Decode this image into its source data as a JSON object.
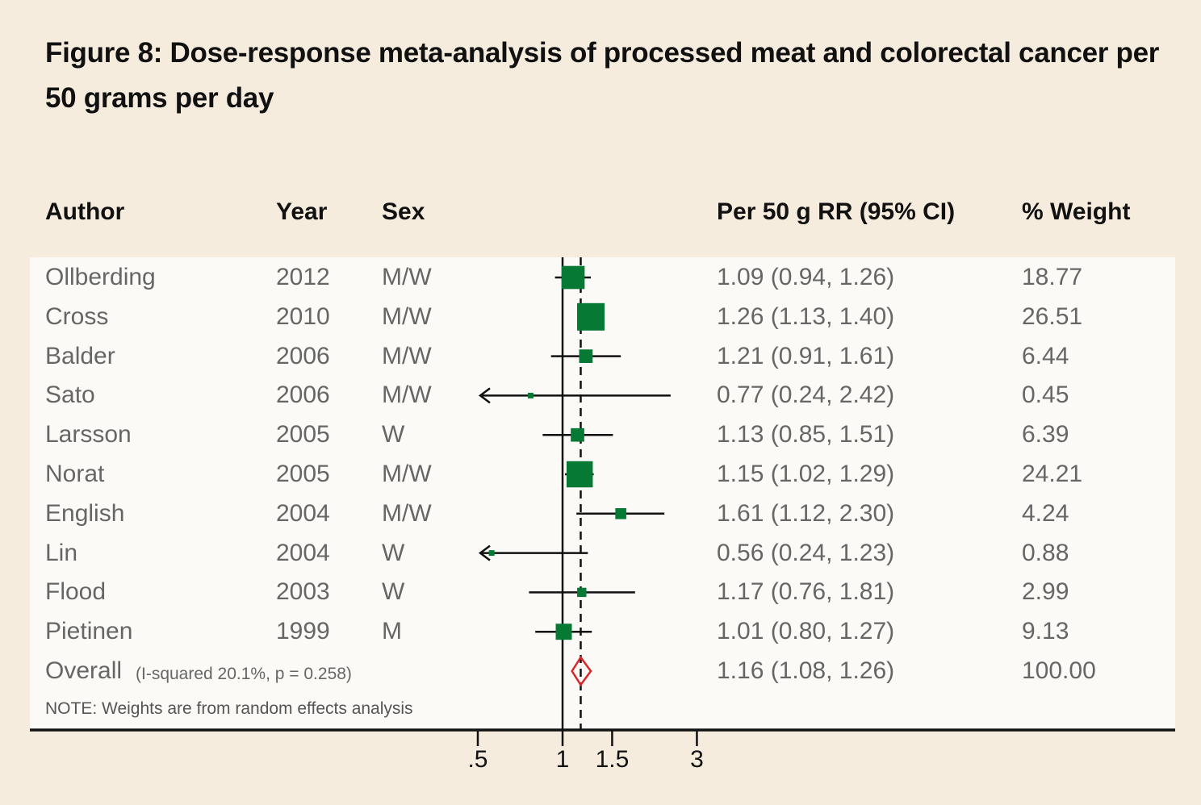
{
  "chart_data": {
    "type": "forest",
    "title": "Figure 8: Dose-response meta-analysis of processed meat and colorectal cancer per 50 grams per day",
    "columns": {
      "author": "Author",
      "year": "Year",
      "sex": "Sex",
      "rr": "Per 50 g RR (95% CI)",
      "weight": "% Weight"
    },
    "rows": [
      {
        "author": "Ollberding",
        "year": "2012",
        "sex": "M/W",
        "rr": 1.09,
        "lo": 0.94,
        "hi": 1.26,
        "rr_text": "1.09 (0.94, 1.26)",
        "weight": 18.77,
        "weight_text": "18.77"
      },
      {
        "author": "Cross",
        "year": "2010",
        "sex": "M/W",
        "rr": 1.26,
        "lo": 1.13,
        "hi": 1.4,
        "rr_text": "1.26 (1.13, 1.40)",
        "weight": 26.51,
        "weight_text": "26.51"
      },
      {
        "author": "Balder",
        "year": "2006",
        "sex": "M/W",
        "rr": 1.21,
        "lo": 0.91,
        "hi": 1.61,
        "rr_text": "1.21 (0.91, 1.61)",
        "weight": 6.44,
        "weight_text": "6.44"
      },
      {
        "author": "Sato",
        "year": "2006",
        "sex": "M/W",
        "rr": 0.77,
        "lo": 0.24,
        "hi": 2.42,
        "rr_text": "0.77 (0.24, 2.42)",
        "weight": 0.45,
        "weight_text": "0.45"
      },
      {
        "author": "Larsson",
        "year": "2005",
        "sex": "W",
        "rr": 1.13,
        "lo": 0.85,
        "hi": 1.51,
        "rr_text": "1.13 (0.85, 1.51)",
        "weight": 6.39,
        "weight_text": "6.39"
      },
      {
        "author": "Norat",
        "year": "2005",
        "sex": "M/W",
        "rr": 1.15,
        "lo": 1.02,
        "hi": 1.29,
        "rr_text": "1.15 (1.02, 1.29)",
        "weight": 24.21,
        "weight_text": "24.21"
      },
      {
        "author": "English",
        "year": "2004",
        "sex": "M/W",
        "rr": 1.61,
        "lo": 1.12,
        "hi": 2.3,
        "rr_text": "1.61 (1.12, 2.30)",
        "weight": 4.24,
        "weight_text": "4.24"
      },
      {
        "author": "Lin",
        "year": "2004",
        "sex": "W",
        "rr": 0.56,
        "lo": 0.24,
        "hi": 1.23,
        "rr_text": "0.56 (0.24, 1.23)",
        "weight": 0.88,
        "weight_text": "0.88"
      },
      {
        "author": "Flood",
        "year": "2003",
        "sex": "W",
        "rr": 1.17,
        "lo": 0.76,
        "hi": 1.81,
        "rr_text": "1.17 (0.76, 1.81)",
        "weight": 2.99,
        "weight_text": "2.99"
      },
      {
        "author": "Pietinen",
        "year": "1999",
        "sex": "M",
        "rr": 1.01,
        "lo": 0.8,
        "hi": 1.27,
        "rr_text": "1.01 (0.80, 1.27)",
        "weight": 9.13,
        "weight_text": "9.13"
      }
    ],
    "overall": {
      "label": "Overall",
      "stats": "(I-squared 20.1%, p = 0.258)",
      "rr": 1.16,
      "lo": 1.08,
      "hi": 1.26,
      "rr_text": "1.16 (1.08, 1.26)",
      "weight_text": "100.00"
    },
    "note": "NOTE: Weights are from random effects analysis",
    "xscale": "log",
    "xlim": [
      0.5,
      3
    ],
    "xticks": [
      0.5,
      1,
      1.5,
      3
    ],
    "xtick_labels": [
      ".5",
      "1",
      "1.5",
      "3"
    ],
    "colors": {
      "box": "#067a34",
      "diamond": "#d9262b",
      "line": "#111111"
    }
  }
}
